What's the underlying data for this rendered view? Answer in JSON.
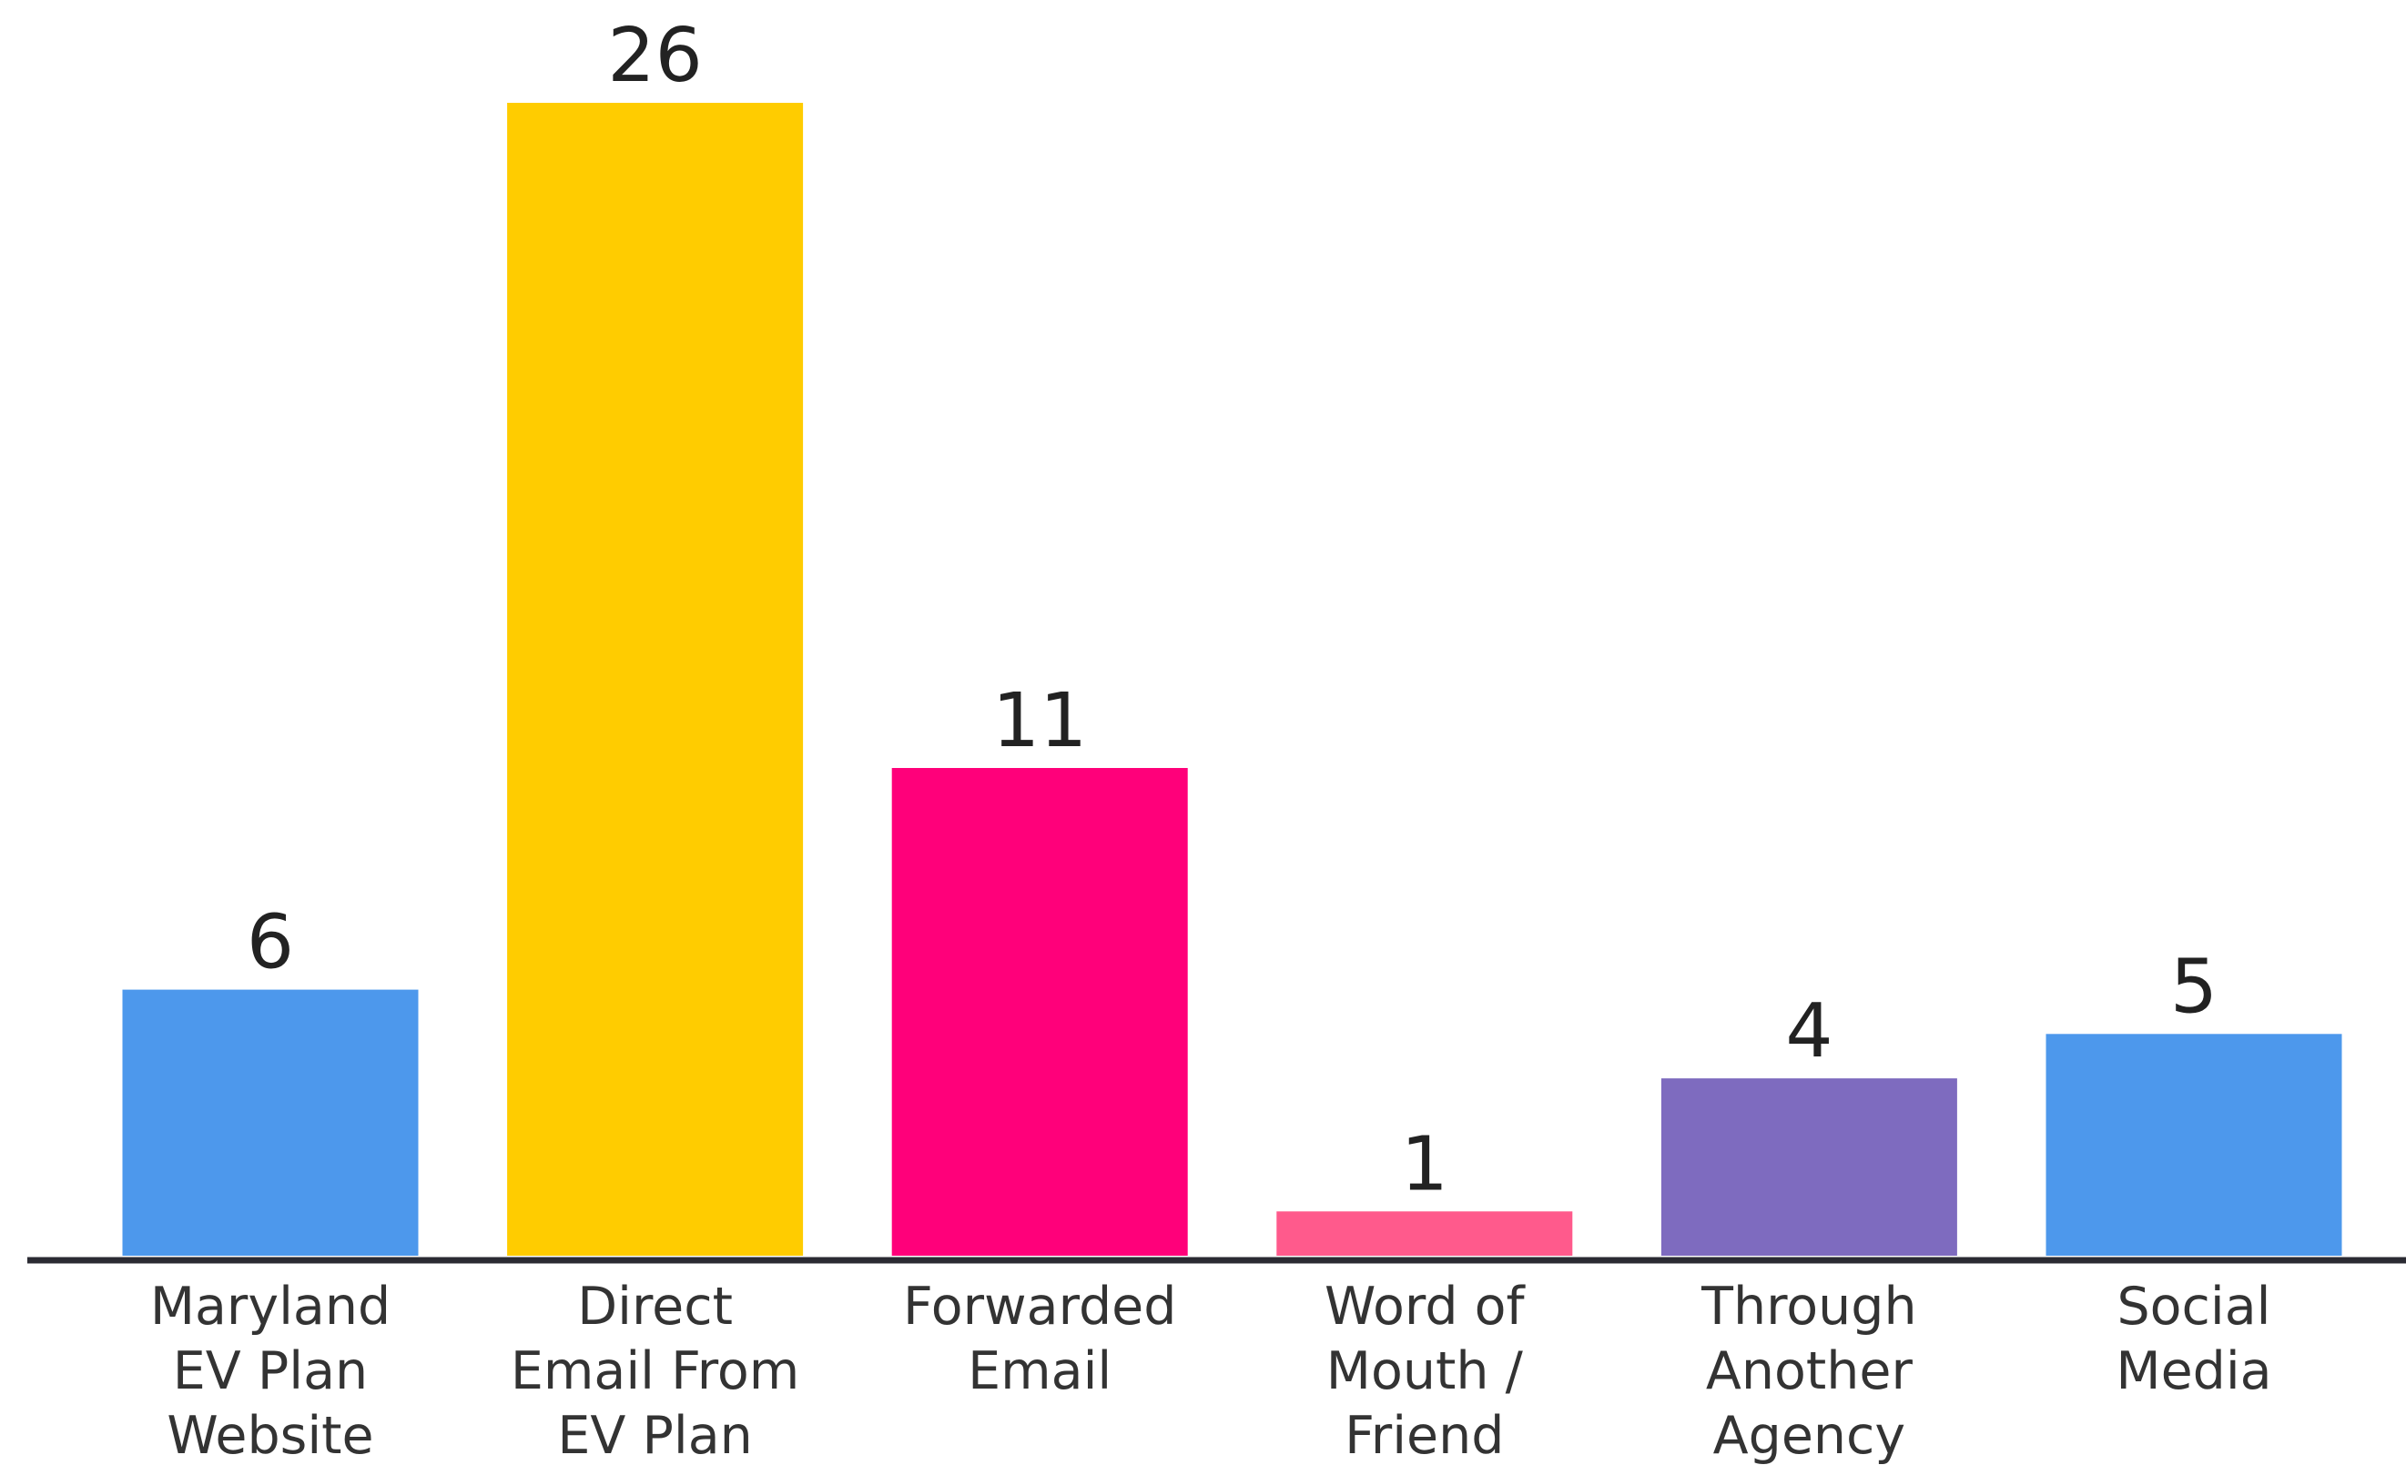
{
  "chart_data": {
    "type": "bar",
    "categories": [
      [
        "Maryland",
        "EV Plan",
        "Website"
      ],
      [
        "Direct",
        "Email From",
        "EV Plan"
      ],
      [
        "Forwarded",
        "Email"
      ],
      [
        "Word of",
        "Mouth /",
        "Friend"
      ],
      [
        "Through",
        "Another",
        "Agency"
      ],
      [
        "Social",
        "Media"
      ]
    ],
    "values": [
      6,
      26,
      11,
      1,
      4,
      5
    ],
    "value_labels": [
      "6",
      "26",
      "11",
      "1",
      "4",
      "5"
    ],
    "colors": [
      "#4d98ec",
      "#ffcc00",
      "#ff007a",
      "#ff5a8c",
      "#7e6bbf",
      "#4d98ec"
    ],
    "axis_color": "#2b2b33",
    "ylim": [
      0,
      26
    ],
    "grid": false,
    "legend": "none",
    "title": "",
    "xlabel": "",
    "ylabel": ""
  }
}
